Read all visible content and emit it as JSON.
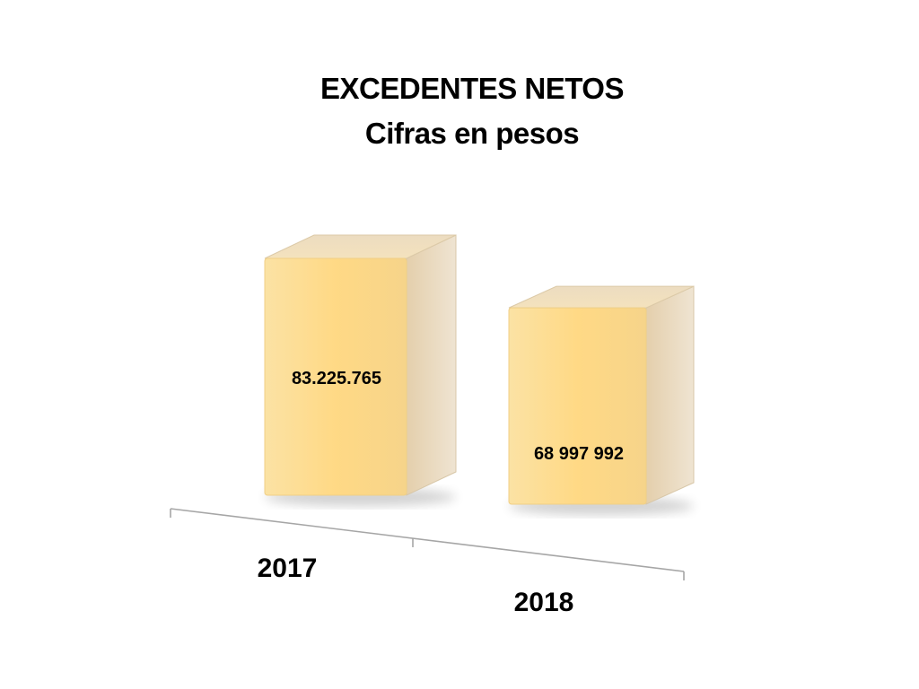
{
  "title": "EXCEDENTES NETOS",
  "subtitle": "Cifras en pesos",
  "chart_data": {
    "type": "bar",
    "title": "EXCEDENTES NETOS",
    "subtitle": "Cifras en pesos",
    "categories": [
      "2017",
      "2018"
    ],
    "values": [
      83225765,
      68997992
    ],
    "value_labels": [
      "83.225.765",
      "68 997 992"
    ],
    "xlabel": "",
    "ylabel": "",
    "grid": false,
    "legend": "none",
    "colors": {
      "bar_front": "#ffd985",
      "bar_side": "#e6d6bb",
      "bar_top": "#f2e2c4"
    }
  }
}
